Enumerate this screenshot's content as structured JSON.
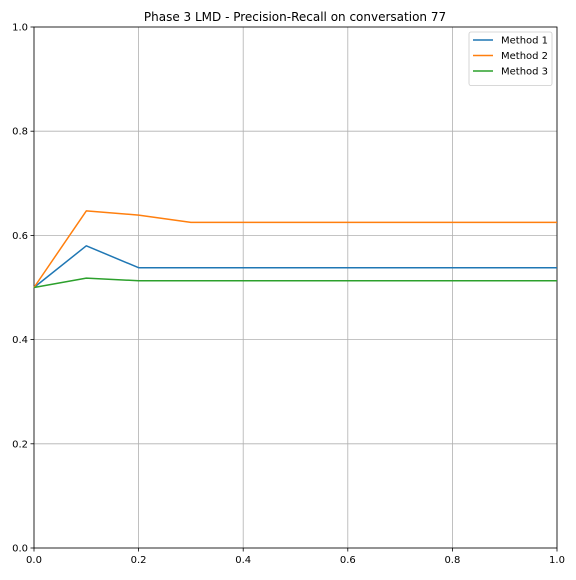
{
  "chart_data": {
    "type": "line",
    "title": "Phase 3 LMD - Precision-Recall on conversation 77",
    "xlabel": "",
    "ylabel": "",
    "xlim": [
      0.0,
      1.0
    ],
    "ylim": [
      0.0,
      1.0
    ],
    "x_ticks": [
      "0.0",
      "0.2",
      "0.4",
      "0.6",
      "0.8",
      "1.0"
    ],
    "y_ticks": [
      "0.0",
      "0.2",
      "0.4",
      "0.6",
      "0.8",
      "1.0"
    ],
    "grid": true,
    "legend_position": "top-right",
    "x": [
      0.0,
      0.1,
      0.2,
      0.3,
      0.4,
      0.5,
      0.6,
      0.7,
      0.8,
      0.9,
      1.0
    ],
    "series": [
      {
        "name": "Method 1",
        "color": "#1f77b4",
        "values": [
          0.5,
          0.58,
          0.538,
          0.538,
          0.538,
          0.538,
          0.538,
          0.538,
          0.538,
          0.538,
          0.538
        ]
      },
      {
        "name": "Method 2",
        "color": "#ff7f0e",
        "values": [
          0.5,
          0.647,
          0.639,
          0.625,
          0.625,
          0.625,
          0.625,
          0.625,
          0.625,
          0.625,
          0.625
        ]
      },
      {
        "name": "Method 3",
        "color": "#2ca02c",
        "values": [
          0.5,
          0.518,
          0.513,
          0.513,
          0.513,
          0.513,
          0.513,
          0.513,
          0.513,
          0.513,
          0.513
        ]
      }
    ]
  }
}
